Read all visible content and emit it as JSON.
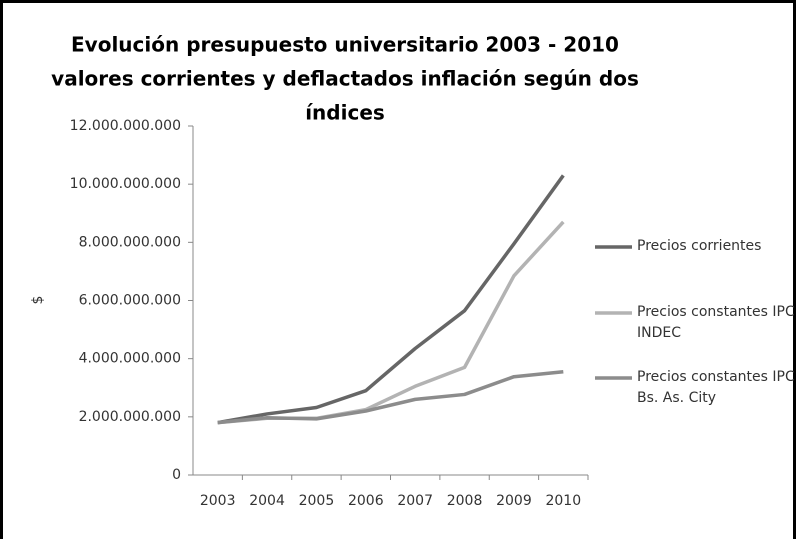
{
  "chart_data": {
    "type": "line",
    "title": [
      "Evolución presupuesto universitario 2003 - 2010",
      "valores corrientes y deflactados inflación según dos",
      "índices"
    ],
    "y_label": "$",
    "categories": [
      "2003",
      "2004",
      "2005",
      "2006",
      "2007",
      "2008",
      "2009",
      "2010"
    ],
    "series": [
      {
        "name": "Precios corrientes",
        "color": "#666666",
        "values": [
          1800000000,
          2100000000,
          2320000000,
          2900000000,
          4350000000,
          5650000000,
          7950000000,
          10300000000
        ]
      },
      {
        "name": "Precios constantes IPC INDEC",
        "color": "#b3b3b3",
        "values": [
          1800000000,
          1950000000,
          1950000000,
          2250000000,
          3050000000,
          3700000000,
          6850000000,
          8700000000
        ]
      },
      {
        "name": "Precios constantes IPC Bs. As. City",
        "color": "#8c8c8c",
        "values": [
          1800000000,
          1970000000,
          1930000000,
          2200000000,
          2600000000,
          2770000000,
          3380000000,
          3550000000
        ]
      }
    ],
    "ylim": [
      0,
      12000000000
    ],
    "yticks": [
      0,
      {
        "value": 2000000000,
        "label": "2.000.000.000"
      },
      {
        "value": 4000000000,
        "label": "4.000.000.000"
      },
      {
        "value": 6000000000,
        "label": "6.000.000.000"
      },
      {
        "value": 8000000000,
        "label": "8.000.000.000"
      },
      {
        "value": 10000000000,
        "label": "10.000.000.000"
      },
      {
        "value": 12000000000,
        "label": "12.000.000.000"
      }
    ],
    "grid": false,
    "legend": "right"
  }
}
